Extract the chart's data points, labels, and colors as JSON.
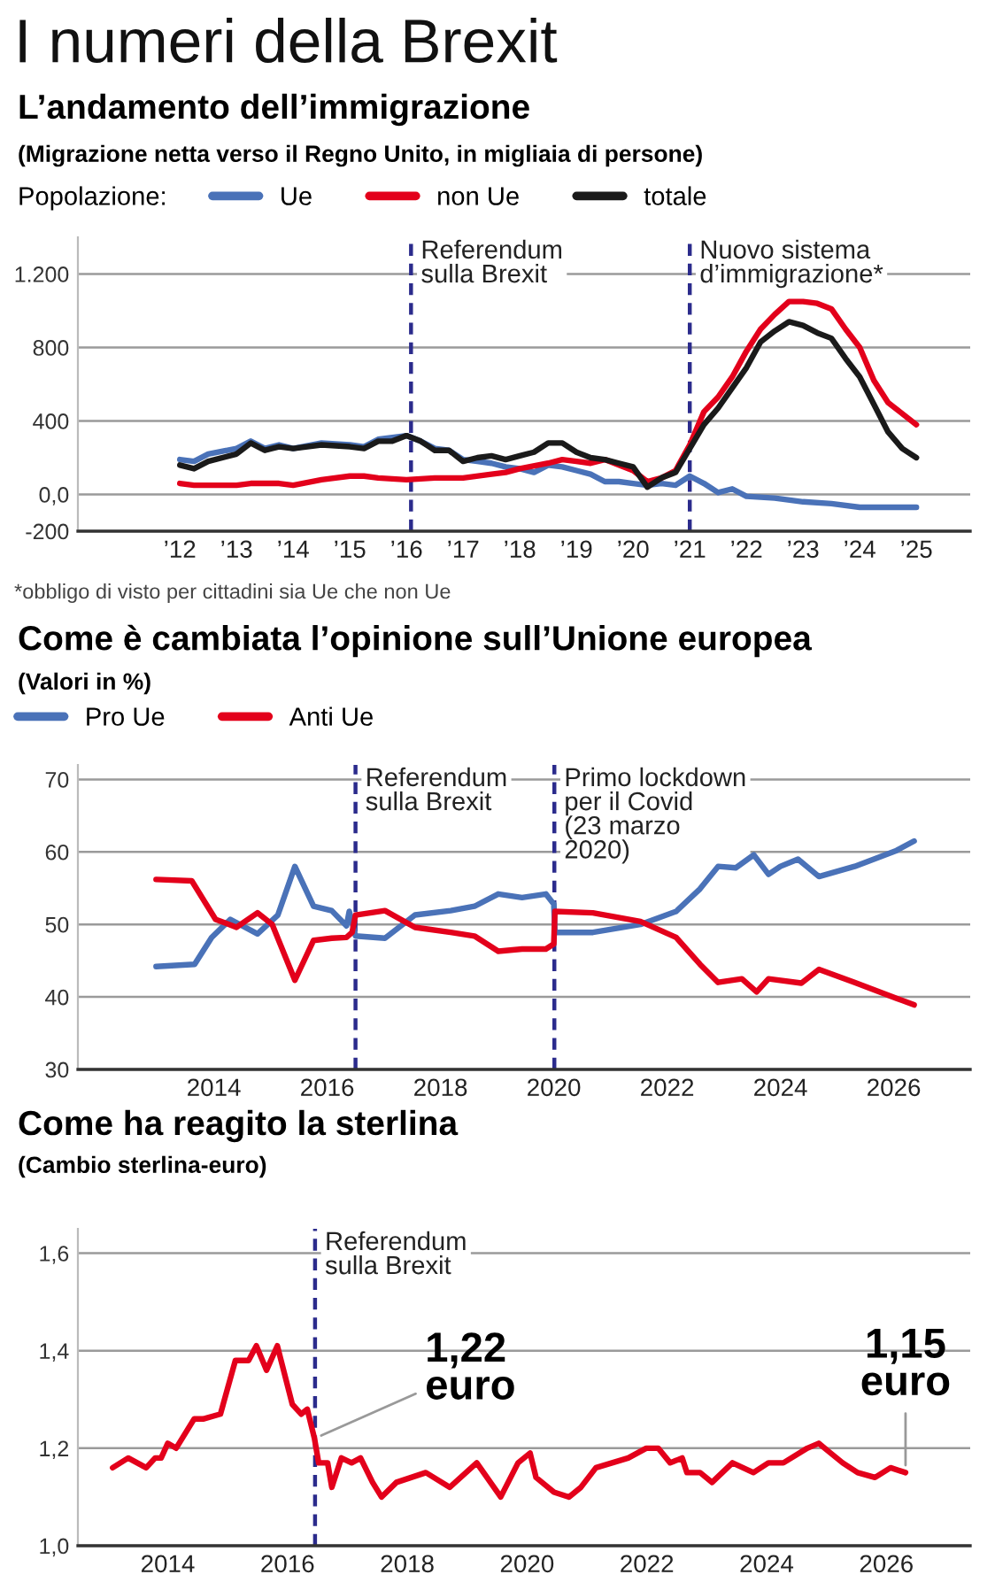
{
  "chart_data": [
    {
      "type": "line",
      "title": "L’andamento dell’immigrazione",
      "subtitle": "(Migrazione netta verso il Regno Unito, in migliaia di persone)",
      "legend_title": "Popolazione:",
      "annotations": [
        "I numeri della Brexit",
        "*obbligo di visto per cittadini sia Ue che non Ue"
      ],
      "series": [
        {
          "name": "Ue",
          "color": "#4a72b8",
          "x": [
            2012,
            2012.25,
            2012.5,
            2013,
            2013.25,
            2013.5,
            2013.75,
            2014,
            2014.5,
            2015,
            2015.25,
            2015.5,
            2016,
            2016.25,
            2016.5,
            2016.75,
            2017,
            2017.25,
            2017.5,
            2017.75,
            2018,
            2018.25,
            2018.5,
            2018.75,
            2019,
            2019.25,
            2019.5,
            2019.75,
            2020,
            2020.25,
            2020.5,
            2020.75,
            2021,
            2021.25,
            2021.5,
            2021.75,
            2022,
            2022.5,
            2023,
            2023.5,
            2024,
            2024.5,
            2025
          ],
          "values": [
            190,
            180,
            220,
            250,
            290,
            250,
            270,
            250,
            280,
            270,
            260,
            300,
            320,
            290,
            250,
            240,
            190,
            180,
            170,
            150,
            140,
            120,
            160,
            150,
            130,
            110,
            70,
            70,
            60,
            50,
            60,
            50,
            100,
            60,
            10,
            30,
            -10,
            -20,
            -40,
            -50,
            -70,
            -70,
            -70
          ]
        },
        {
          "name": "non Ue",
          "color": "#e3001b",
          "x": [
            2012,
            2012.25,
            2012.5,
            2013,
            2013.25,
            2013.75,
            2014,
            2014.5,
            2015,
            2015.25,
            2015.5,
            2016,
            2016.5,
            2016.75,
            2017,
            2017.5,
            2017.75,
            2018,
            2018.5,
            2018.75,
            2019,
            2019.25,
            2019.5,
            2020,
            2020.25,
            2020.5,
            2020.75,
            2021,
            2021.25,
            2021.5,
            2021.75,
            2022,
            2022.25,
            2022.5,
            2022.75,
            2023,
            2023.25,
            2023.5,
            2023.75,
            2024,
            2024.25,
            2024.5,
            2025
          ],
          "values": [
            60,
            50,
            50,
            50,
            60,
            60,
            50,
            80,
            100,
            100,
            90,
            80,
            90,
            90,
            90,
            110,
            120,
            140,
            170,
            190,
            180,
            170,
            190,
            130,
            70,
            90,
            130,
            270,
            450,
            530,
            640,
            780,
            900,
            980,
            1050,
            1050,
            1040,
            1010,
            900,
            800,
            620,
            500,
            380
          ]
        },
        {
          "name": "totale",
          "color": "#1a1a1a",
          "x": [
            2012,
            2012.25,
            2012.5,
            2013,
            2013.25,
            2013.5,
            2013.75,
            2014,
            2014.5,
            2015,
            2015.25,
            2015.5,
            2015.75,
            2016,
            2016.25,
            2016.5,
            2016.75,
            2017,
            2017.25,
            2017.5,
            2017.75,
            2018,
            2018.25,
            2018.5,
            2018.75,
            2019,
            2019.25,
            2019.5,
            2019.75,
            2020,
            2020.25,
            2020.5,
            2020.75,
            2021,
            2021.25,
            2021.5,
            2021.75,
            2022,
            2022.25,
            2022.5,
            2022.75,
            2023,
            2023.25,
            2023.5,
            2023.75,
            2024,
            2024.25,
            2024.5,
            2024.75,
            2025
          ],
          "values": [
            160,
            140,
            180,
            220,
            280,
            240,
            260,
            250,
            270,
            260,
            250,
            290,
            290,
            320,
            290,
            240,
            240,
            180,
            200,
            210,
            190,
            210,
            230,
            280,
            280,
            230,
            200,
            190,
            170,
            150,
            40,
            90,
            120,
            250,
            380,
            470,
            580,
            690,
            830,
            890,
            940,
            920,
            880,
            850,
            740,
            640,
            490,
            340,
            250,
            200
          ]
        }
      ],
      "xlim": [
        2010.2,
        2025.95
      ],
      "xticks": [
        {
          "value": 2012,
          "label": "’12"
        },
        {
          "value": 2013,
          "label": "’13"
        },
        {
          "value": 2014,
          "label": "’14"
        },
        {
          "value": 2015,
          "label": "’15"
        },
        {
          "value": 2016,
          "label": "’16"
        },
        {
          "value": 2017,
          "label": "’17"
        },
        {
          "value": 2018,
          "label": "’18"
        },
        {
          "value": 2019,
          "label": "’19"
        },
        {
          "value": 2020,
          "label": "’20"
        },
        {
          "value": 2021,
          "label": "’21"
        },
        {
          "value": 2022,
          "label": "’22"
        },
        {
          "value": 2023,
          "label": "’23"
        },
        {
          "value": 2024,
          "label": "’24"
        },
        {
          "value": 2025,
          "label": "’25"
        }
      ],
      "ylim": [
        -200,
        1400
      ],
      "yticks": [
        -200,
        {
          "value": 0,
          "label": "0,0"
        },
        400,
        800,
        {
          "value": 1200,
          "label": "1.200"
        }
      ],
      "ref_lines": [
        {
          "axis": "x",
          "value": 2016.08,
          "label": "Referendum\nsulla Brexit",
          "color": "#2b2b8c",
          "line_style": "dashed"
        },
        {
          "axis": "x",
          "value": 2021.0,
          "label": "Nuovo sistema\nd’immigrazione*",
          "color": "#2b2b8c",
          "line_style": "dashed"
        }
      ],
      "grid": "y",
      "legend": "top",
      "line_style": "solid",
      "marker": "none"
    },
    {
      "type": "line",
      "title": "Come è cambiata l’opinione sull’Unione europea",
      "subtitle": "(Valori in %)",
      "series": [
        {
          "name": "Pro Ue",
          "color": "#4a72b8",
          "x": [
            2012.98,
            2013.66,
            2013.96,
            2014.29,
            2014.77,
            2015.13,
            2015.43,
            2015.76,
            2016.08,
            2016.34,
            2016.39,
            2016.5,
            2017.02,
            2017.55,
            2018.18,
            2018.6,
            2019.02,
            2019.44,
            2019.86,
            2020.0,
            2020.02,
            2020.69,
            2021.53,
            2022.16,
            2022.58,
            2022.9,
            2023.21,
            2023.53,
            2023.79,
            2024.0,
            2024.31,
            2024.68,
            2025.31,
            2026.05,
            2026.36
          ],
          "values": [
            44.2,
            44.5,
            48.2,
            50.7,
            48.7,
            51.3,
            58.0,
            52.5,
            51.9,
            49.8,
            51.8,
            48.4,
            48.1,
            51.3,
            51.9,
            52.5,
            54.2,
            53.7,
            54.2,
            52.8,
            48.9,
            48.9,
            50.0,
            51.8,
            54.9,
            58.0,
            57.8,
            59.6,
            56.9,
            58.0,
            59.0,
            56.6,
            58.0,
            60.2,
            61.5
          ]
        },
        {
          "name": "Anti Ue",
          "color": "#e3001b",
          "x": [
            2012.98,
            2013.61,
            2014.03,
            2014.4,
            2014.77,
            2015.03,
            2015.43,
            2015.76,
            2016.08,
            2016.34,
            2016.44,
            2016.5,
            2017.02,
            2017.55,
            2018.18,
            2018.6,
            2019.02,
            2019.44,
            2019.86,
            2020.0,
            2020.02,
            2020.69,
            2021.53,
            2022.16,
            2022.58,
            2022.9,
            2023.32,
            2023.58,
            2023.79,
            2024.37,
            2024.68,
            2025.31,
            2026.05,
            2026.36
          ],
          "values": [
            56.2,
            56.0,
            50.7,
            49.6,
            51.6,
            50.0,
            42.3,
            47.8,
            48.1,
            48.2,
            48.9,
            51.3,
            51.9,
            49.6,
            48.9,
            48.4,
            46.3,
            46.6,
            46.6,
            47.3,
            51.8,
            51.6,
            50.4,
            48.2,
            44.5,
            42.0,
            42.5,
            40.7,
            42.5,
            41.9,
            43.8,
            42.0,
            39.8,
            38.9
          ]
        }
      ],
      "xlim": [
        2011.6,
        2027.35
      ],
      "xticks": [
        2014,
        2016,
        2018,
        2020,
        2022,
        2024,
        2026
      ],
      "ylim": [
        30,
        72
      ],
      "yticks": [
        30,
        40,
        50,
        60,
        70
      ],
      "ref_lines": [
        {
          "axis": "x",
          "value": 2016.5,
          "label": "Referendum\nsulla Brexit",
          "color": "#2b2b8c",
          "line_style": "dashed"
        },
        {
          "axis": "x",
          "value": 2020.01,
          "label": "Primo lockdown\nper il Covid\n(23 marzo\n2020)",
          "color": "#2b2b8c",
          "line_style": "dashed"
        }
      ],
      "grid": "y",
      "legend": "top",
      "line_style": "solid",
      "marker": "none"
    },
    {
      "type": "line",
      "title": "Come ha reagito la sterlina",
      "subtitle": "(Cambio sterlina-euro)",
      "annotations": [
        {
          "text": "1,22\neuro",
          "x": 2016.45,
          "y": 1.22
        },
        {
          "text": "1,15\neuro",
          "x": 2026.32,
          "y": 1.15
        }
      ],
      "series": [
        {
          "color": "#e3001b",
          "x": [
            2013.08,
            2013.34,
            2013.49,
            2013.64,
            2013.79,
            2013.89,
            2014.0,
            2014.14,
            2014.44,
            2014.59,
            2014.88,
            2015.13,
            2015.35,
            2015.48,
            2015.65,
            2015.83,
            2016.08,
            2016.23,
            2016.33,
            2016.45,
            2016.52,
            2016.67,
            2016.74,
            2016.9,
            2017.07,
            2017.22,
            2017.42,
            2017.57,
            2017.82,
            2018.31,
            2018.71,
            2019.16,
            2019.56,
            2019.85,
            2020.05,
            2020.15,
            2020.45,
            2020.7,
            2020.9,
            2021.15,
            2021.69,
            2021.99,
            2022.19,
            2022.39,
            2022.59,
            2022.67,
            2022.89,
            2023.09,
            2023.43,
            2023.78,
            2024.03,
            2024.28,
            2024.68,
            2024.87,
            2025.07,
            2025.27,
            2025.52,
            2025.81,
            2026.07,
            2026.32
          ],
          "values": [
            1.16,
            1.18,
            1.17,
            1.16,
            1.18,
            1.18,
            1.21,
            1.2,
            1.26,
            1.26,
            1.27,
            1.38,
            1.38,
            1.41,
            1.36,
            1.41,
            1.29,
            1.27,
            1.28,
            1.22,
            1.17,
            1.17,
            1.12,
            1.18,
            1.17,
            1.18,
            1.13,
            1.1,
            1.13,
            1.15,
            1.12,
            1.17,
            1.1,
            1.17,
            1.19,
            1.14,
            1.11,
            1.1,
            1.12,
            1.16,
            1.18,
            1.2,
            1.2,
            1.17,
            1.18,
            1.15,
            1.15,
            1.13,
            1.17,
            1.15,
            1.17,
            1.17,
            1.2,
            1.21,
            1.19,
            1.17,
            1.15,
            1.14,
            1.16,
            1.15
          ]
        }
      ],
      "xlim": [
        2012.5,
        2027.4
      ],
      "xticks": [
        2014,
        2016,
        2018,
        2020,
        2022,
        2024,
        2026
      ],
      "ylim": [
        1.0,
        1.65
      ],
      "yticks": [
        {
          "value": 1.0,
          "label": "1,0"
        },
        {
          "value": 1.2,
          "label": "1,2"
        },
        {
          "value": 1.4,
          "label": "1,4"
        },
        {
          "value": 1.6,
          "label": "1,6"
        }
      ],
      "ref_lines": [
        {
          "axis": "x",
          "value": 2016.46,
          "label": "Referendum\nsulla Brexit",
          "color": "#2b2b8c",
          "line_style": "dashed"
        }
      ],
      "grid": "y",
      "line_style": "solid",
      "marker": "none"
    }
  ]
}
